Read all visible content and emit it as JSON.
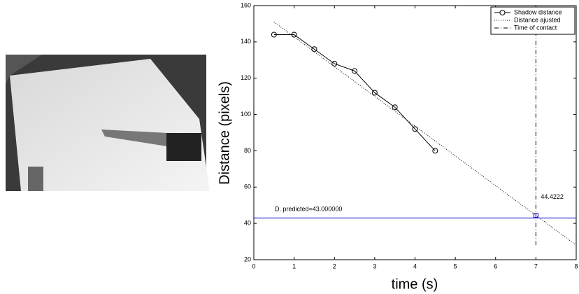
{
  "chart_data": {
    "type": "line",
    "xlabel": "time (s)",
    "ylabel": "Distance (pixels)",
    "xlim": [
      0,
      8
    ],
    "ylim": [
      20,
      160
    ],
    "xticks": [
      0,
      1,
      2,
      3,
      4,
      5,
      6,
      7,
      8
    ],
    "yticks": [
      20,
      40,
      60,
      80,
      100,
      120,
      140,
      160
    ],
    "legend": "upper right",
    "series": [
      {
        "name": "Shadow distance",
        "color": "#000000",
        "style": "solid",
        "marker": "circle",
        "x": [
          0.5,
          1,
          1.5,
          2,
          2.5,
          3,
          3.5,
          4,
          4.5
        ],
        "values": [
          144,
          144,
          136,
          128,
          124,
          112,
          104,
          92,
          80
        ]
      },
      {
        "name": "Distance ajusted",
        "color": "#000000",
        "style": "dotted",
        "x": [
          0.5,
          8
        ],
        "values": [
          151,
          28
        ]
      },
      {
        "name": "Time of contact",
        "color": "#000000",
        "style": "dashdot",
        "x": [
          7,
          7
        ],
        "values": [
          28,
          160
        ]
      }
    ],
    "hline": {
      "value": 43,
      "color": "#0000cc",
      "label": "D. predicted=43.000000"
    },
    "marker": {
      "x": 7,
      "y": 44.4222,
      "color": "#0000cc"
    }
  }
}
